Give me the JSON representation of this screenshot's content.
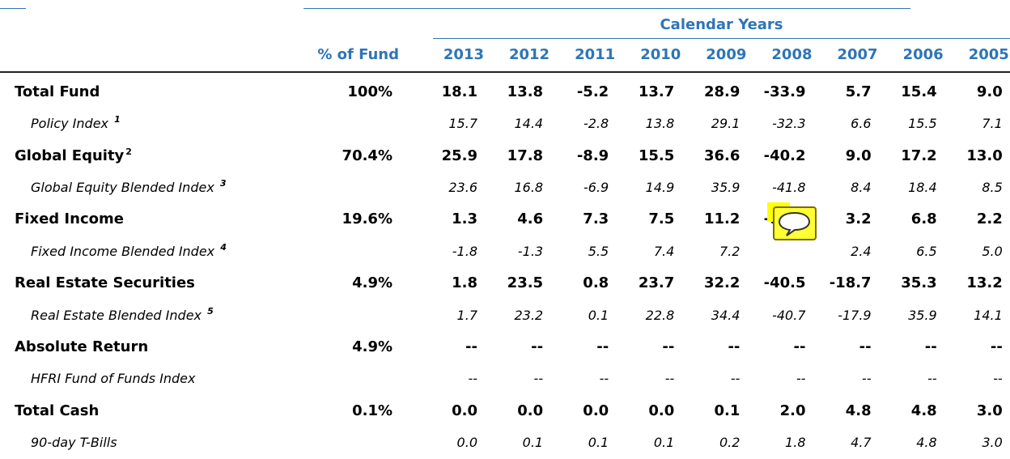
{
  "header": {
    "group_title": "Calendar Years",
    "fund_column": "% of Fund",
    "years": [
      "2013",
      "2012",
      "2011",
      "2010",
      "2009",
      "2008",
      "2007",
      "2006",
      "2005"
    ]
  },
  "rows": [
    {
      "label": "Total Fund",
      "style": "main",
      "fund": "100%",
      "values": [
        "18.1",
        "13.8",
        "-5.2",
        "13.7",
        "28.9",
        "-33.9",
        "5.7",
        "15.4",
        "9.0"
      ]
    },
    {
      "label": "Policy Index ",
      "note": "1",
      "style": "index",
      "values": [
        "15.7",
        "14.4",
        "-2.8",
        "13.8",
        "29.1",
        "-32.3",
        "6.6",
        "15.5",
        "7.1"
      ]
    },
    {
      "label": "Global Equity",
      "note": "2",
      "style": "main",
      "fund": "70.4%",
      "values": [
        "25.9",
        "17.8",
        "-8.9",
        "15.5",
        "36.6",
        "-40.2",
        "9.0",
        "17.2",
        "13.0"
      ]
    },
    {
      "label": "Global Equity Blended Index ",
      "note": "3",
      "style": "index",
      "values": [
        "23.6",
        "16.8",
        "-6.9",
        "14.9",
        "35.9",
        "-41.8",
        "8.4",
        "18.4",
        "8.5"
      ]
    },
    {
      "label": "Fixed Income",
      "style": "main",
      "fund": "19.6%",
      "values": [
        "1.3",
        "4.6",
        "7.3",
        "7.5",
        "11.2",
        "-14.3",
        "3.2",
        "6.8",
        "2.2"
      ]
    },
    {
      "label": "Fixed Income Blended Index ",
      "note": "4",
      "style": "index",
      "values": [
        "-1.8",
        "-1.3",
        "5.5",
        "7.4",
        "7.2",
        null,
        "2.4",
        "6.5",
        "5.0"
      ]
    },
    {
      "label": "Real Estate Securities",
      "style": "main",
      "fund": "4.9%",
      "values": [
        "1.8",
        "23.5",
        "0.8",
        "23.7",
        "32.2",
        "-40.5",
        "-18.7",
        "35.3",
        "13.2"
      ]
    },
    {
      "label": "Real Estate Blended Index ",
      "note": "5",
      "style": "index",
      "values": [
        "1.7",
        "23.2",
        "0.1",
        "22.8",
        "34.4",
        "-40.7",
        "-17.9",
        "35.9",
        "14.1"
      ]
    },
    {
      "label": "Absolute Return",
      "style": "main",
      "fund": "4.9%",
      "values": [
        "--",
        "--",
        "--",
        "--",
        "--",
        "--",
        "--",
        "--",
        "--"
      ]
    },
    {
      "label": "HFRI Fund of Funds Index",
      "style": "index",
      "values": [
        "--",
        "--",
        "--",
        "--",
        "--",
        "--",
        "--",
        "--",
        "--"
      ]
    },
    {
      "label": "Total Cash",
      "style": "main",
      "fund": "0.1%",
      "values": [
        "0.0",
        "0.0",
        "0.0",
        "0.0",
        "0.1",
        "2.0",
        "4.8",
        "4.8",
        "3.0"
      ]
    },
    {
      "label": "90-day T-Bills",
      "style": "index",
      "values": [
        "0.0",
        "0.1",
        "0.1",
        "0.1",
        "0.2",
        "1.8",
        "4.7",
        "4.8",
        "3.0"
      ]
    }
  ]
}
